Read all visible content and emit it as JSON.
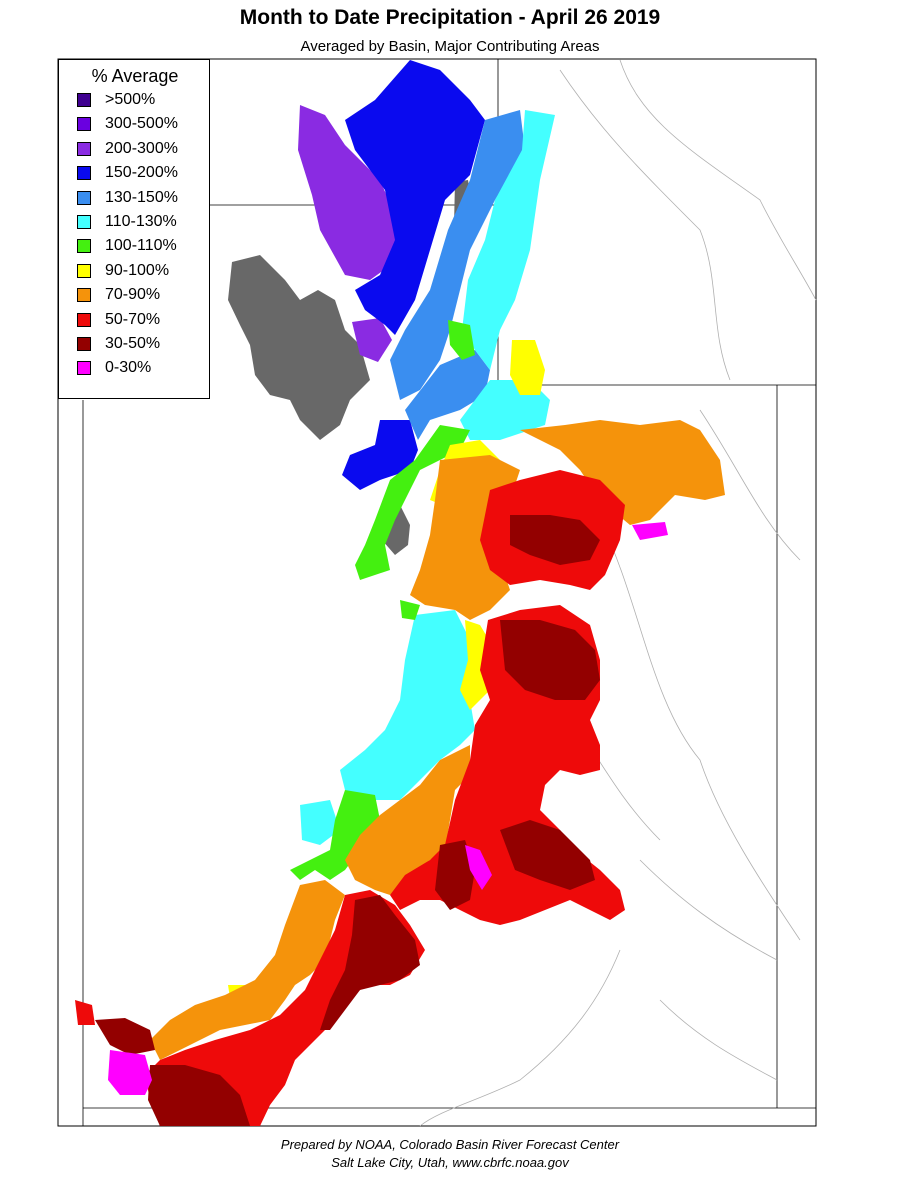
{
  "header": {
    "title": "Month to Date Precipitation - April 26 2019",
    "subtitle": "Averaged by Basin, Major Contributing Areas"
  },
  "legend": {
    "title": "% Average",
    "items": [
      {
        "label": ">500%",
        "color": "#3f0090"
      },
      {
        "label": "300-500%",
        "color": "#6a00e0"
      },
      {
        "label": "200-300%",
        "color": "#8a2be2"
      },
      {
        "label": "150-200%",
        "color": "#0a0aef"
      },
      {
        "label": "130-150%",
        "color": "#3a8ef0"
      },
      {
        "label": "110-130%",
        "color": "#44ffff"
      },
      {
        "label": "100-110%",
        "color": "#44f010"
      },
      {
        "label": "90-100%",
        "color": "#ffff00"
      },
      {
        "label": "70-90%",
        "color": "#f5930b"
      },
      {
        "label": "50-70%",
        "color": "#ee0a0a"
      },
      {
        "label": "30-50%",
        "color": "#930000"
      },
      {
        "label": "0-30%",
        "color": "#ff00ff"
      }
    ]
  },
  "map": {
    "no_data_color": "#686868",
    "boundary_color": "#b0b0b0"
  },
  "footer": {
    "line1": "Prepared by NOAA, Colorado Basin River Forecast Center",
    "line2": "Salt Lake City, Utah, www.cbrfc.noaa.gov"
  }
}
